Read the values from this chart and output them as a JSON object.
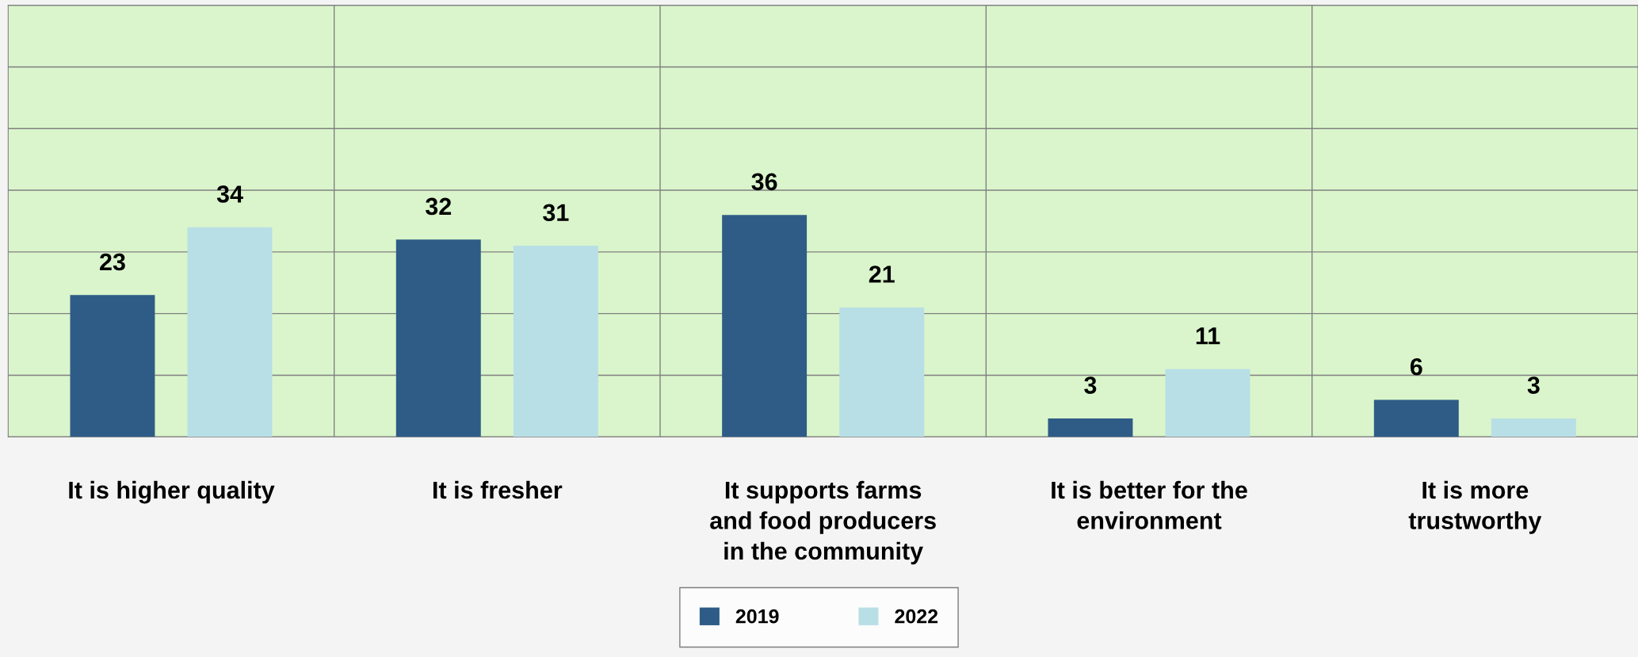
{
  "chart_data": {
    "type": "bar",
    "categories": [
      "It is higher quality",
      "It is fresher",
      "It supports farms\nand food producers\nin the community",
      "It is better for the\nenvironment",
      "It is more\ntrustworthy"
    ],
    "series": [
      {
        "name": "2019",
        "color": "#2e5c87",
        "values": [
          23,
          32,
          36,
          3,
          6
        ]
      },
      {
        "name": "2022",
        "color": "#b8dfe6",
        "values": [
          34,
          31,
          21,
          11,
          3
        ]
      }
    ],
    "ylim": [
      0,
      70
    ],
    "yticks": [
      {
        "value": 0,
        "label": null
      },
      {
        "value": 10,
        "label": null
      },
      {
        "value": 20,
        "label": null
      },
      {
        "value": 30,
        "label": null
      },
      {
        "value": 40,
        "label": null
      },
      {
        "value": 50,
        "label": null
      },
      {
        "value": 60,
        "label": null
      },
      {
        "value": 70,
        "label": null
      }
    ],
    "tick_labels": "x",
    "grid": true,
    "data_labels": true,
    "legend": "bottom"
  }
}
